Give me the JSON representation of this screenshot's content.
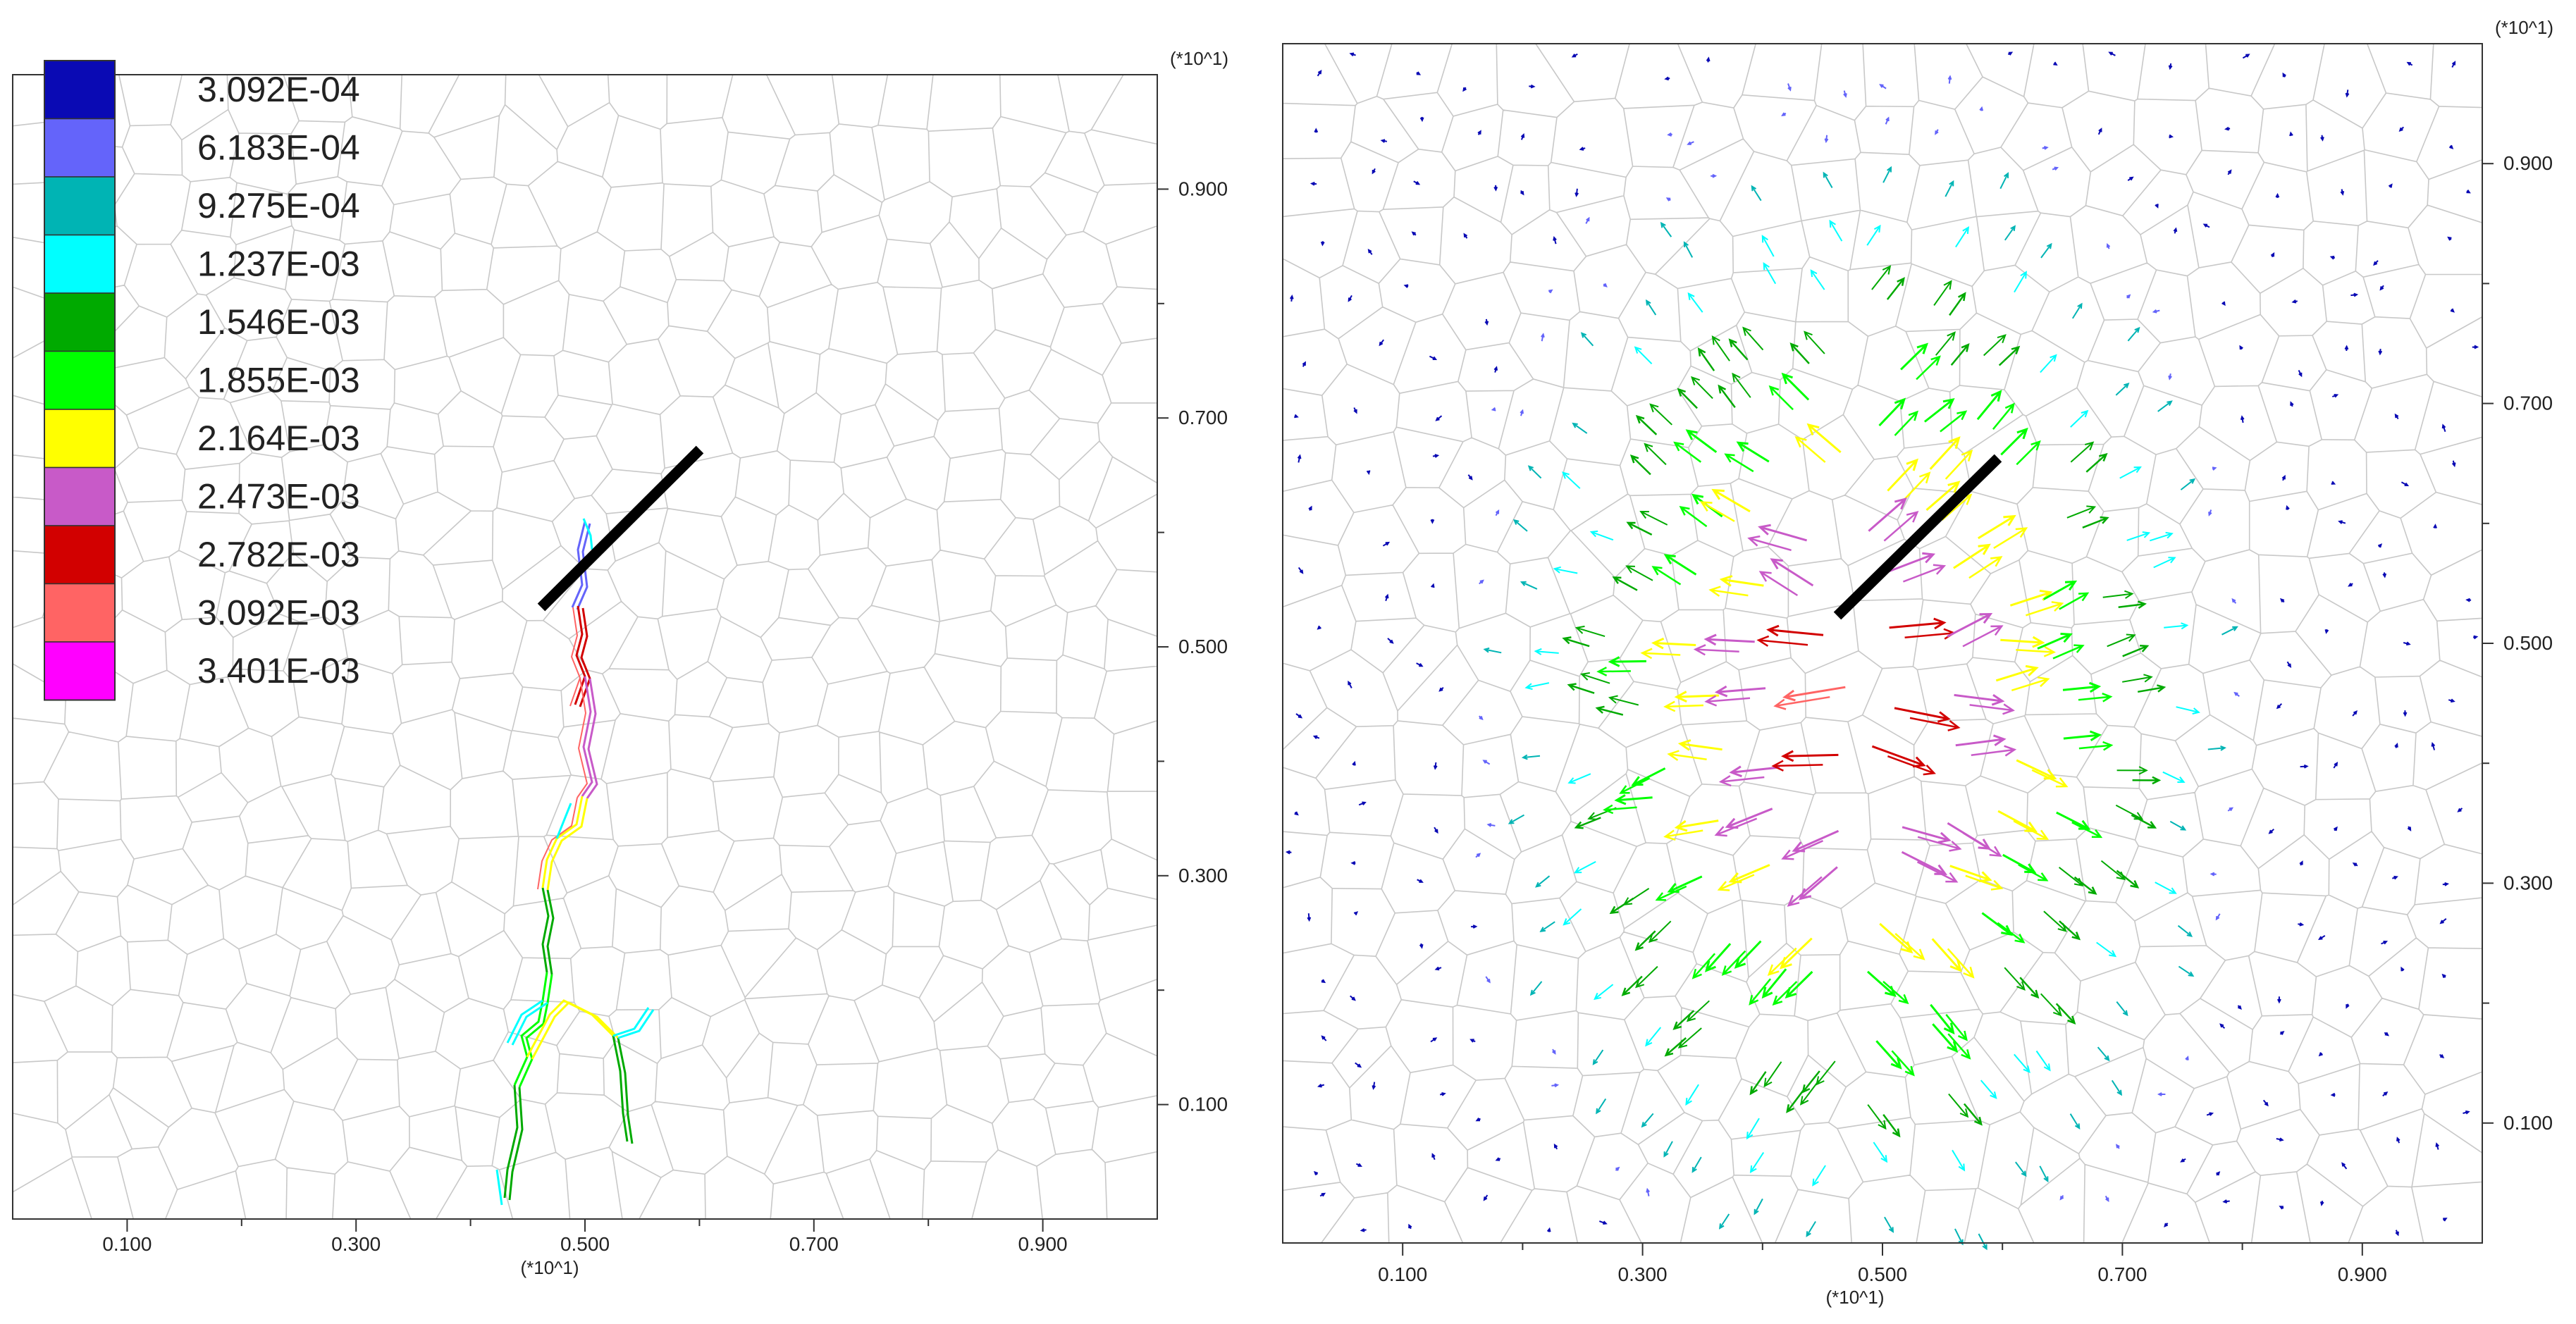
{
  "legend": {
    "entries": [
      {
        "value": "3.092E-04",
        "color": "#0a0ab4"
      },
      {
        "value": "6.183E-04",
        "color": "#6464fa"
      },
      {
        "value": "9.275E-04",
        "color": "#00b4b4"
      },
      {
        "value": "1.237E-03",
        "color": "#00ffff"
      },
      {
        "value": "1.546E-03",
        "color": "#00aa00"
      },
      {
        "value": "1.855E-03",
        "color": "#00ff00"
      },
      {
        "value": "2.164E-03",
        "color": "#ffff00"
      },
      {
        "value": "2.473E-03",
        "color": "#c85ac8"
      },
      {
        "value": "2.782E-03",
        "color": "#d20000"
      },
      {
        "value": "3.092E-03",
        "color": "#ff6464"
      },
      {
        "value": "3.401E-03",
        "color": "#ff00ff"
      }
    ]
  },
  "left_panel": {
    "x_ticks": [
      "0.100",
      "0.300",
      "0.500",
      "0.700",
      "0.900"
    ],
    "y_ticks": [
      "0.900",
      "0.700",
      "0.500",
      "0.300",
      "0.100"
    ],
    "x_multiplier": "(*10^1)",
    "y_multiplier": "(*10^1)"
  },
  "right_panel": {
    "x_ticks": [
      "0.100",
      "0.300",
      "0.500",
      "0.700",
      "0.900"
    ],
    "y_ticks": [
      "0.900",
      "0.700",
      "0.500",
      "0.300",
      "0.100"
    ],
    "x_multiplier": "(*10^1)",
    "y_multiplier": "(*10^1)"
  },
  "colors": {
    "mesh": "#c8c8c8",
    "axis": "#333333",
    "fracture": "#000000"
  }
}
